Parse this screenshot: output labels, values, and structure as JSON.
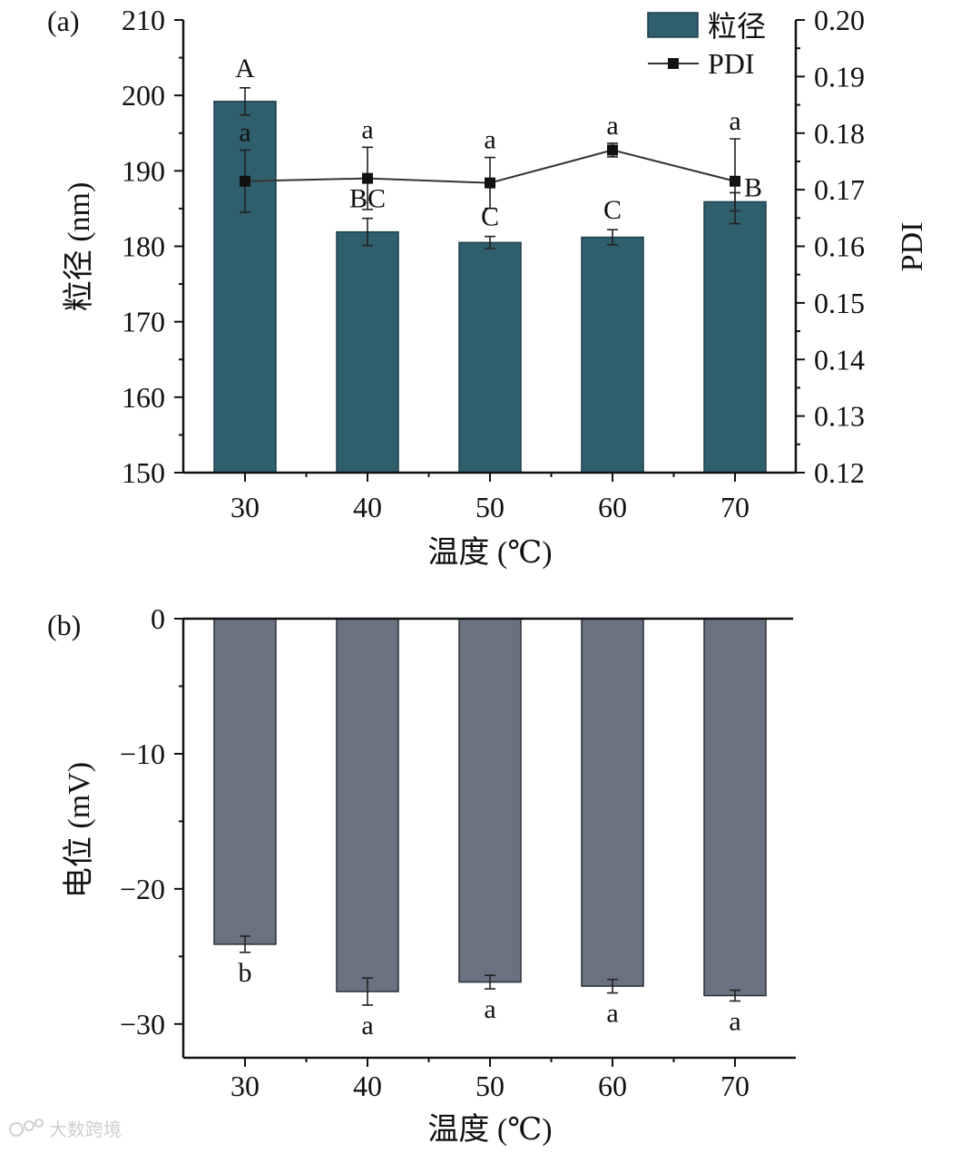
{
  "chart_data": [
    {
      "type": "bar",
      "panel_label": "(a)",
      "categories": [
        "30",
        "40",
        "50",
        "60",
        "70"
      ],
      "xlabel": "温度 (℃)",
      "ylabel": "粒径 (nm)",
      "ylim": [
        150,
        210
      ],
      "yticks": [
        "150",
        "160",
        "170",
        "180",
        "190",
        "200",
        "210"
      ],
      "y2label": "PDI",
      "y2lim": [
        0.12,
        0.2
      ],
      "y2ticks": [
        "0.12",
        "0.13",
        "0.14",
        "0.15",
        "0.16",
        "0.17",
        "0.18",
        "0.19",
        "0.20"
      ],
      "legend": {
        "position": "top-right",
        "entries": [
          "粒径",
          "PDI"
        ]
      },
      "bar_color": "#2f5f6d",
      "series": [
        {
          "name": "粒径",
          "kind": "bar",
          "axis": "left",
          "values": [
            199.2,
            181.9,
            180.5,
            181.2,
            185.9
          ],
          "errors": [
            1.8,
            1.8,
            0.8,
            1.0,
            1.2
          ],
          "labels": [
            "A",
            "BC",
            "C",
            "C",
            "B"
          ]
        },
        {
          "name": "PDI",
          "kind": "line",
          "axis": "right",
          "values": [
            0.1715,
            0.172,
            0.1712,
            0.177,
            0.1715
          ],
          "errors": [
            0.0055,
            0.0055,
            0.0045,
            0.0012,
            0.0075
          ],
          "labels": [
            "a",
            "a",
            "a",
            "a",
            "a"
          ]
        }
      ]
    },
    {
      "type": "bar",
      "panel_label": "(b)",
      "categories": [
        "30",
        "40",
        "50",
        "60",
        "70"
      ],
      "xlabel": "温度 (℃)",
      "ylabel": "电位 (mV)",
      "ylim": [
        -32.5,
        0
      ],
      "yticks": [
        "0",
        "−10",
        "−20",
        "−30"
      ],
      "bar_color": "#6a7282",
      "series": [
        {
          "name": "电位",
          "kind": "bar",
          "values": [
            -24.1,
            -27.6,
            -26.9,
            -27.2,
            -27.9
          ],
          "errors": [
            0.6,
            1.0,
            0.5,
            0.5,
            0.4
          ],
          "labels": [
            "b",
            "a",
            "a",
            "a",
            "a"
          ]
        }
      ]
    }
  ],
  "watermark": "大数跨境"
}
